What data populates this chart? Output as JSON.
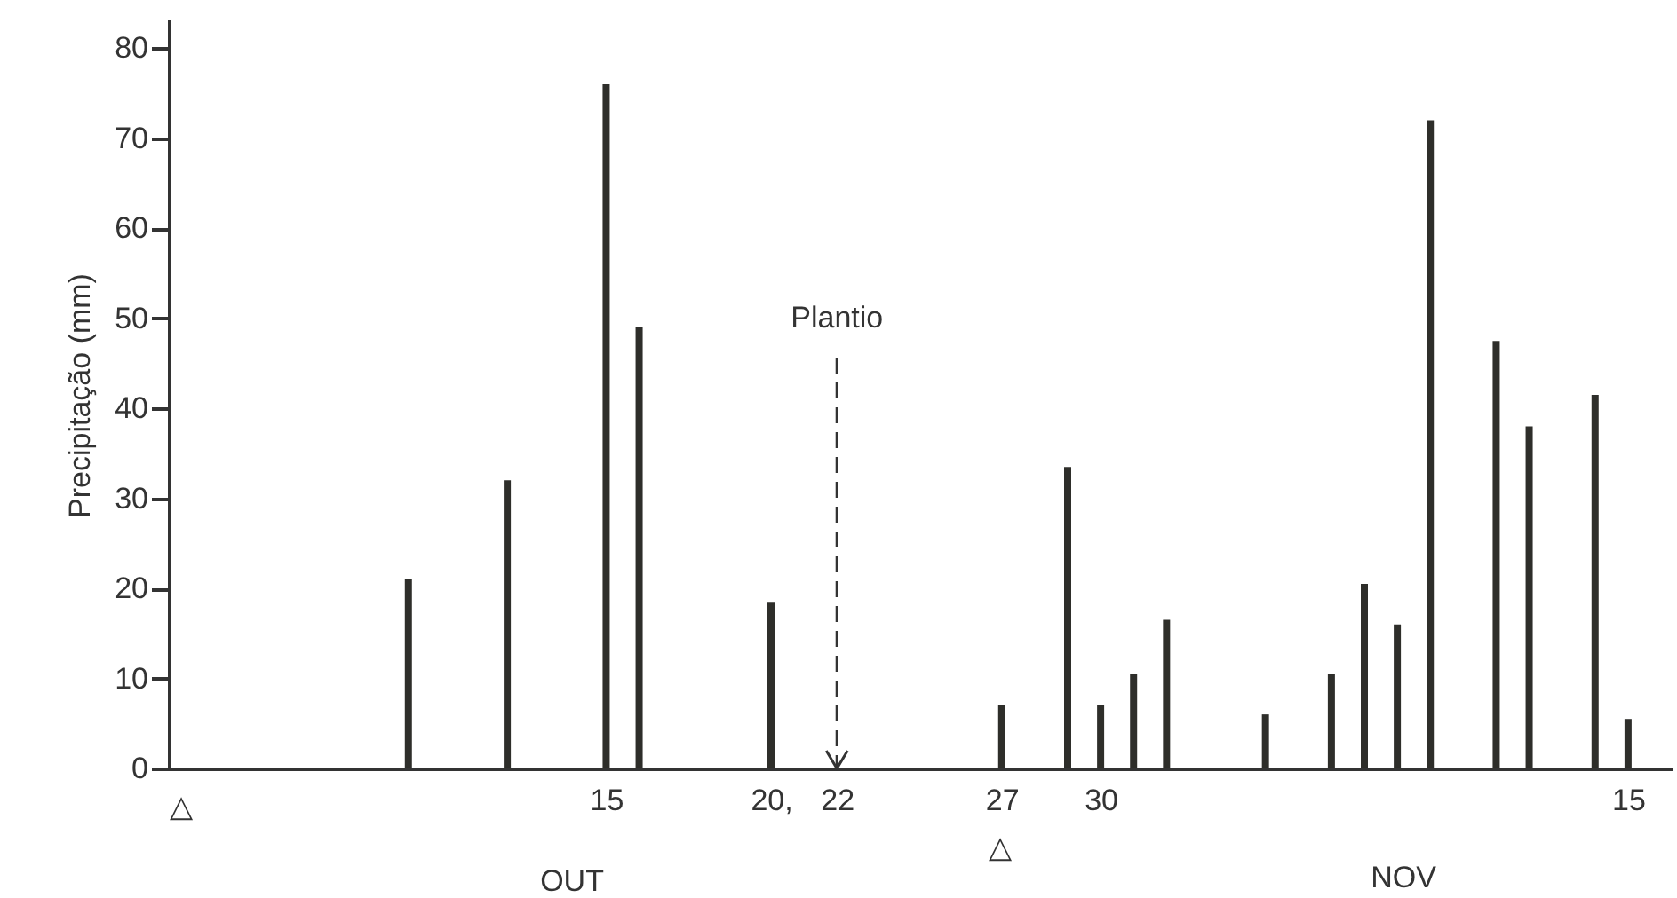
{
  "chart_data": {
    "type": "bar",
    "ylabel": "Precipitação (mm)",
    "color": "#2e2e2a",
    "x": [
      "--10-09",
      "--10-12",
      "--10-15",
      "--10-16",
      "--10-20",
      "--10-27",
      "--10-29",
      "--10-30",
      "--10-31",
      "--11-01",
      "--11-04",
      "--11-06",
      "--11-07",
      "--11-08",
      "--11-09",
      "--11-11",
      "--11-12",
      "--11-14",
      "--11-15"
    ],
    "values": [
      21,
      32,
      76,
      49,
      18.5,
      7,
      33.5,
      7,
      10.5,
      16.5,
      6,
      10.5,
      20.5,
      16,
      72,
      47.5,
      38,
      41.5,
      5.5
    ],
    "xlim": [
      "--10-02",
      "--11-16"
    ],
    "xticks": [
      {
        "value": "--10-15",
        "label": "15"
      },
      {
        "value": "--10-20",
        "label": "20,"
      },
      {
        "value": "--10-22",
        "label": "22"
      },
      {
        "value": "--10-27",
        "label": "27"
      },
      {
        "value": "--10-30",
        "label": "30"
      },
      {
        "value": "--11-15",
        "label": "15"
      }
    ],
    "ylim": [
      0,
      83
    ],
    "yticks": [
      0,
      10,
      20,
      30,
      40,
      50,
      60,
      70,
      80
    ],
    "ref_lines": [
      {
        "axis": "x",
        "value": "--10-22",
        "label": "Plantio",
        "line_style": "dashed"
      }
    ],
    "annotations": [
      "△",
      "OUT",
      "△",
      "NOV"
    ]
  }
}
